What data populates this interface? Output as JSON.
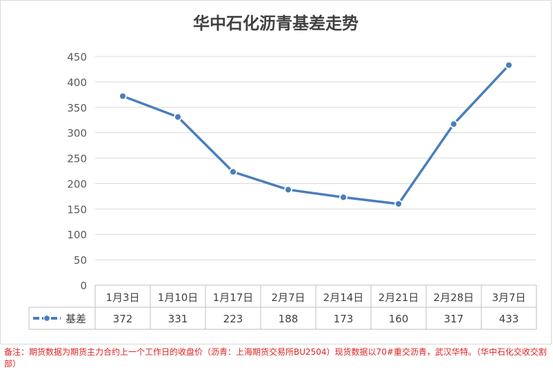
{
  "chart_data": {
    "type": "line",
    "title": "华中石化沥青基差走势",
    "categories": [
      "1月3日",
      "1月10日",
      "1月17日",
      "2月7日",
      "2月14日",
      "2月21日",
      "2月28日",
      "3月7日"
    ],
    "series": [
      {
        "name": "基差",
        "values": [
          372,
          331,
          223,
          188,
          173,
          160,
          317,
          433
        ],
        "color": "#4a7ebb"
      }
    ],
    "plot_values": [
      372,
      331,
      223,
      188,
      173,
      160,
      317,
      433
    ],
    "ylim": [
      0,
      450
    ],
    "yticks": [
      0,
      50,
      100,
      150,
      200,
      250,
      300,
      350,
      400,
      450
    ],
    "grid": true,
    "legend": "data-table"
  },
  "footnote": "备注：期货数据为期货主力合约上一个工作日的收盘价（沥青：上海期货交易所BU2504）现货数据以70#重交沥青，武汉华特。（华中石化交收交割部）"
}
